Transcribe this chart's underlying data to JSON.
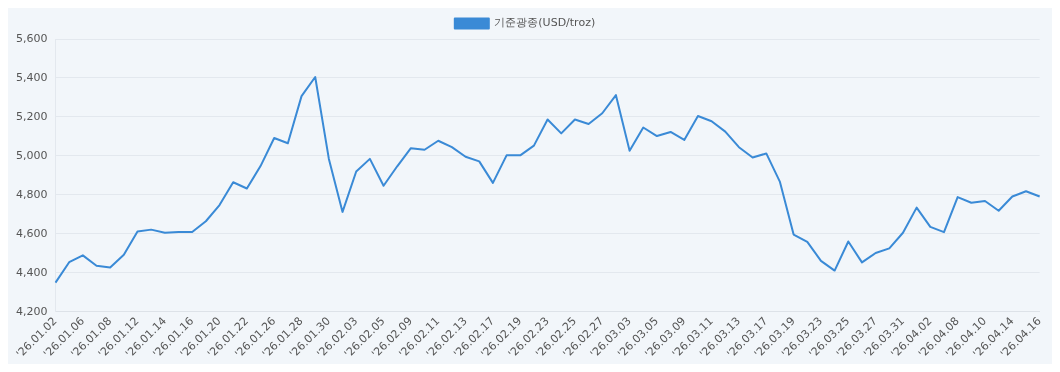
{
  "chart_data": {
    "type": "line",
    "categories": [
      "'26.01.02",
      null,
      "'26.01.06",
      null,
      "'26.01.08",
      null,
      "'26.01.12",
      null,
      "'26.01.14",
      null,
      "'26.01.16",
      null,
      "'26.01.20",
      null,
      "'26.01.22",
      null,
      "'26.01.26",
      null,
      "'26.01.28",
      null,
      "'26.01.30",
      null,
      "'26.02.03",
      null,
      "'26.02.05",
      null,
      "'26.02.09",
      null,
      "'26.02.11",
      null,
      "'26.02.13",
      null,
      "'26.02.17",
      null,
      "'26.02.19",
      null,
      "'26.02.23",
      null,
      "'26.02.25",
      null,
      "'26.02.27",
      null,
      "'26.03.03",
      null,
      "'26.03.05",
      null,
      "'26.03.09",
      null,
      "'26.03.11",
      null,
      "'26.03.13",
      null,
      "'26.03.17",
      null,
      "'26.03.19",
      null,
      "'26.03.23",
      null,
      "'26.03.25",
      null,
      "'26.03.27",
      null,
      "'26.03.31",
      null,
      "'26.04.02",
      null,
      "'26.04.08",
      null,
      "'26.04.10",
      null,
      "'26.04.14",
      null,
      "'26.04.16"
    ],
    "series": [
      {
        "name": "기준광종(USD/troz)",
        "color": "#3a8ad6",
        "values": [
          4350,
          4455,
          4490,
          4437,
          4428,
          4493,
          4612,
          4622,
          4606,
          4610,
          4610,
          4665,
          4748,
          4865,
          4833,
          4948,
          5092,
          5065,
          5307,
          5405,
          4985,
          4713,
          4920,
          4985,
          4847,
          4947,
          5040,
          5032,
          5078,
          5045,
          4996,
          4972,
          4862,
          5003,
          5003,
          5053,
          5187,
          5116,
          5187,
          5164,
          5219,
          5312,
          5027,
          5146,
          5102,
          5123,
          5082,
          5205,
          5178,
          5125,
          5045,
          4992,
          5013,
          4867,
          4597,
          4559,
          4462,
          4412,
          4561,
          4454,
          4502,
          4526,
          4606,
          4735,
          4636,
          4609,
          4789,
          4760,
          4769,
          4719,
          4792,
          4819,
          4792
        ]
      }
    ],
    "ylim": [
      4200,
      5600
    ],
    "yticks": [
      {
        "value": 4200,
        "label": "4,200"
      },
      {
        "value": 4400,
        "label": "4,400"
      },
      {
        "value": 4600,
        "label": "4,600"
      },
      {
        "value": 4800,
        "label": "4,800"
      },
      {
        "value": 5000,
        "label": "5,000"
      },
      {
        "value": 5200,
        "label": "5,200"
      },
      {
        "value": 5400,
        "label": "5,400"
      },
      {
        "value": 5600,
        "label": "5,600"
      }
    ],
    "grid": "y",
    "legend": "top",
    "marker": "none"
  }
}
